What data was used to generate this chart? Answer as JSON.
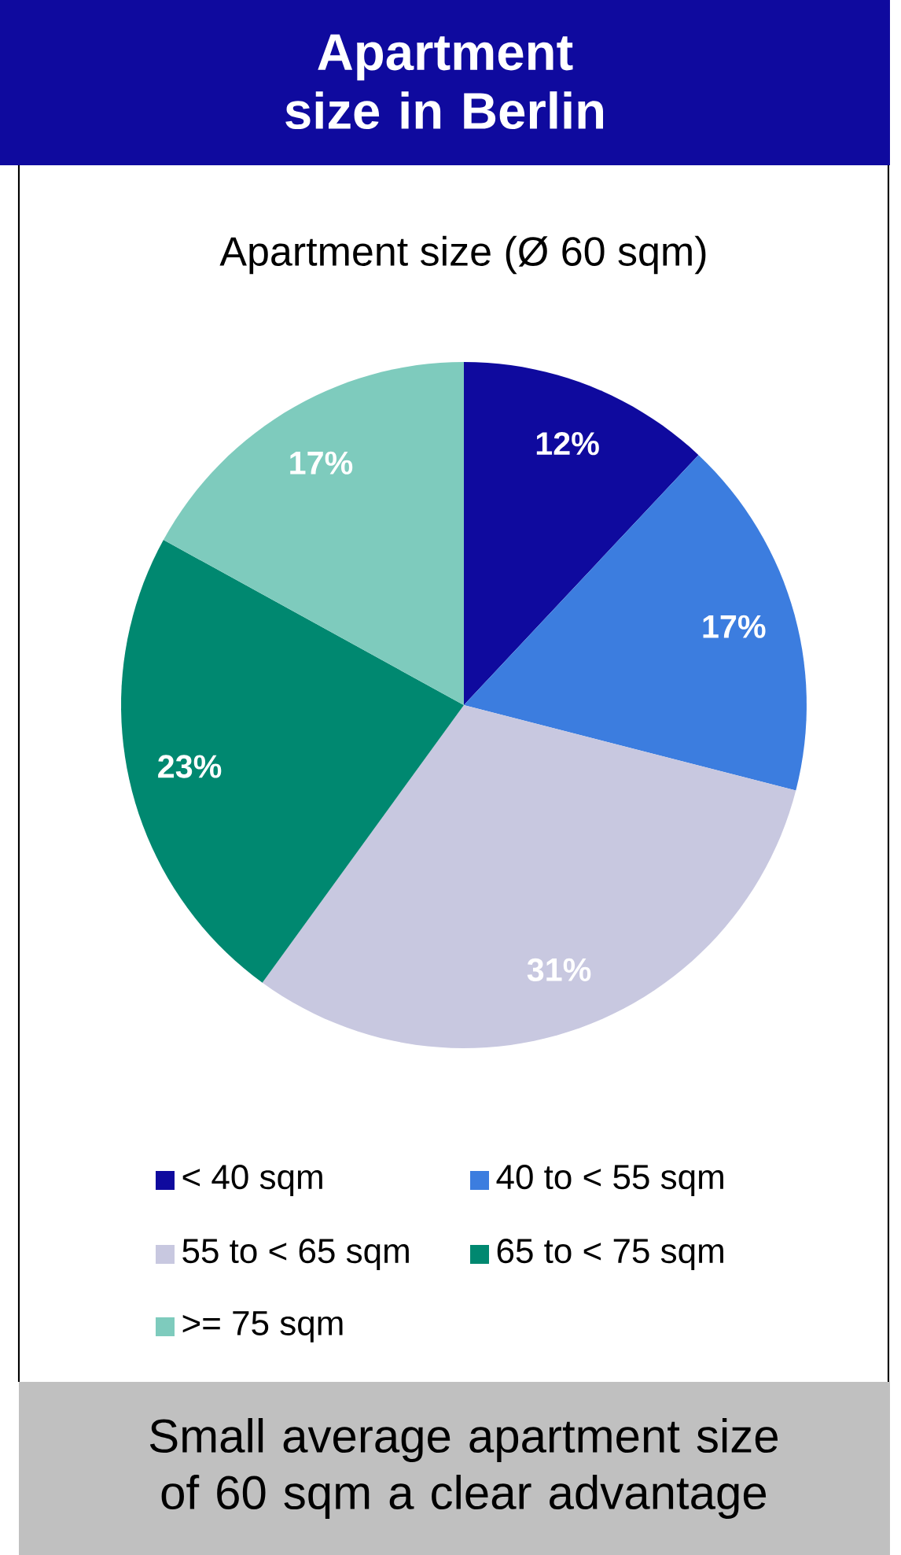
{
  "chart_data": {
    "type": "pie",
    "title": "Apartment size in Berlin",
    "subtitle": "Apartment size (Ø 60 sqm)",
    "categories": [
      "< 40 sqm",
      "40 to < 55 sqm",
      "55 to < 65 sqm",
      "65 to < 75 sqm",
      ">= 75 sqm"
    ],
    "values": [
      12,
      17,
      31,
      23,
      17
    ],
    "colors": [
      "#0f0a9e",
      "#3c7ddf",
      "#c8c8e0",
      "#008870",
      "#7ecbbd"
    ],
    "value_labels": [
      "12%",
      "17%",
      "31%",
      "23%",
      "17%"
    ],
    "legend": "bottom",
    "annotations": [
      "Small average apartment size of 60 sqm a clear advantage"
    ]
  }
}
